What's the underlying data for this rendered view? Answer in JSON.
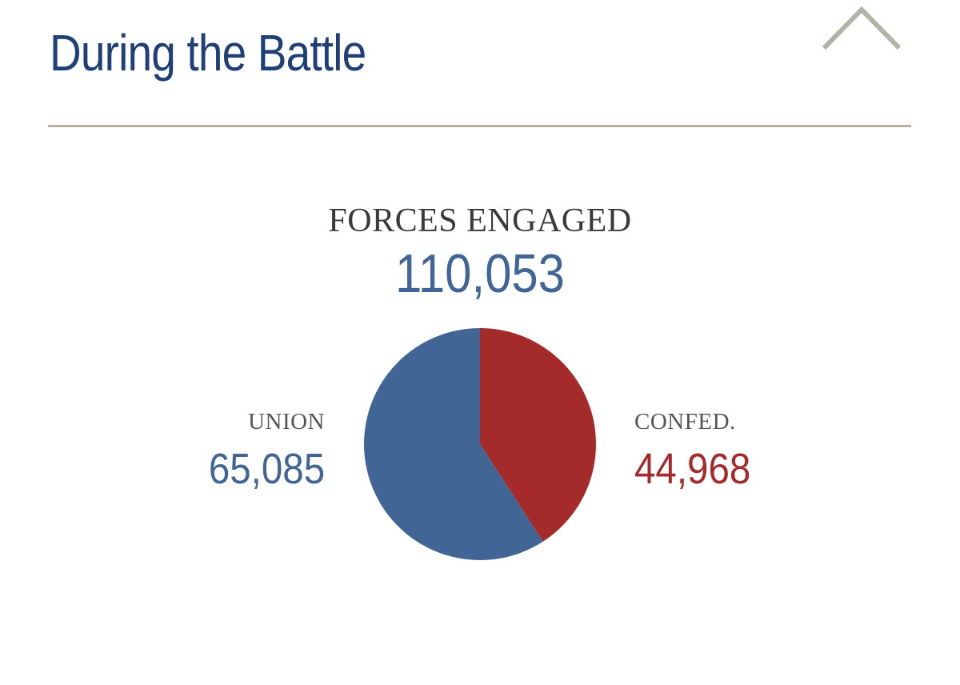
{
  "section": {
    "title": "During the Battle",
    "collapse_icon": "chevron-up-icon"
  },
  "chart_data": {
    "type": "pie",
    "title": "FORCES ENGAGED",
    "total": "110,053",
    "slices": [
      {
        "name": "CONFED.",
        "value": 44968,
        "display": "44,968",
        "color": "#a52a2a"
      },
      {
        "name": "UNION",
        "value": 65085,
        "display": "65,085",
        "color": "#416595"
      }
    ],
    "start": "12 o'clock",
    "direction": "clockwise"
  },
  "colors": {
    "title": "#1f3f77",
    "divider": "#b6b2a8",
    "chevron": "#b6b2a8",
    "union": "#416595",
    "confederate": "#a52a2a",
    "heading": "#3a3a3a",
    "label": "#555555"
  }
}
